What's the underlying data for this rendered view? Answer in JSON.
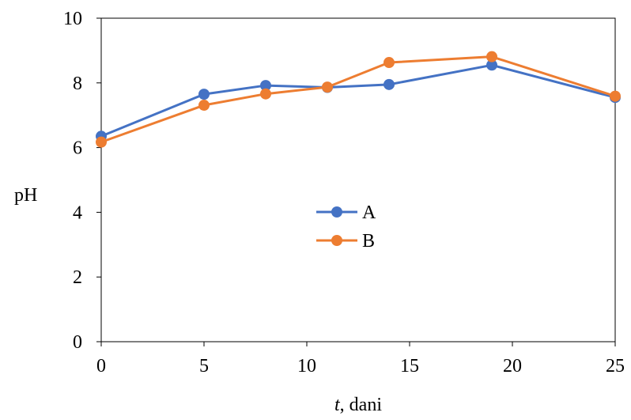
{
  "chart_data": {
    "type": "line",
    "xlabel_var": "t",
    "xlabel_rest": ", dani",
    "ylabel": "pH",
    "xlim": [
      0,
      25
    ],
    "ylim": [
      0,
      10
    ],
    "xticks": [
      0,
      5,
      10,
      15,
      20,
      25
    ],
    "yticks": [
      0,
      2,
      4,
      6,
      8,
      10
    ],
    "grid": false,
    "legend_position": "center",
    "series": [
      {
        "name": "A",
        "color": "#4472C4",
        "x": [
          0,
          5,
          8,
          11,
          14,
          19,
          25
        ],
        "y": [
          6.35,
          7.65,
          7.92,
          7.86,
          7.95,
          8.55,
          7.55
        ]
      },
      {
        "name": "B",
        "color": "#ED7D31",
        "x": [
          0,
          5,
          8,
          11,
          14,
          19,
          25
        ],
        "y": [
          6.17,
          7.31,
          7.66,
          7.87,
          8.63,
          8.81,
          7.59
        ]
      }
    ]
  }
}
